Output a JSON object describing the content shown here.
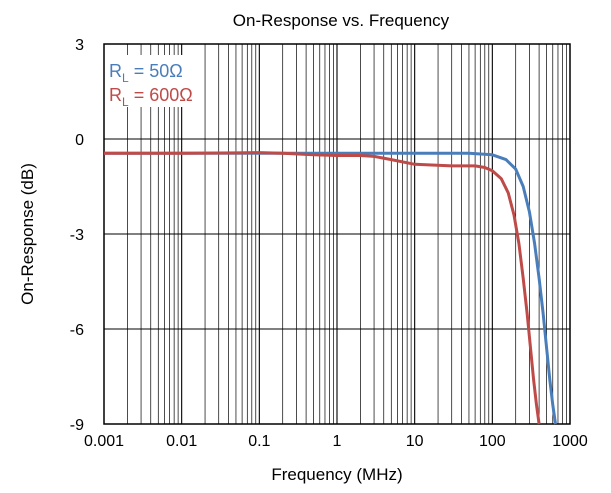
{
  "chart_data": {
    "type": "line",
    "title": "On-Response vs. Frequency",
    "xlabel": "Frequency (MHz)",
    "ylabel": "On-Response (dB)",
    "x_scale": "log",
    "xlim": [
      0.001,
      1000
    ],
    "ylim": [
      -9,
      3
    ],
    "x_ticks": [
      0.001,
      0.01,
      0.1,
      1,
      10,
      100,
      1000
    ],
    "x_tick_labels": [
      "0.001",
      "0.01",
      "0.1",
      "1",
      "10",
      "100",
      "1000"
    ],
    "y_ticks": [
      3,
      0,
      -3,
      -6,
      -9
    ],
    "y_tick_labels": [
      "3",
      "0",
      "-3",
      "-6",
      "-9"
    ],
    "grid": true,
    "legend": "top-left",
    "series": [
      {
        "name": "R_L = 50Ω",
        "legend_main": "R",
        "legend_sub": "L",
        "legend_rest": " = 50Ω",
        "color": "#4a7ebb",
        "x": [
          0.001,
          0.01,
          0.1,
          1,
          10,
          50,
          100,
          150,
          200,
          250,
          300,
          350,
          400,
          450,
          500,
          550,
          600,
          650
        ],
        "y": [
          -0.45,
          -0.45,
          -0.45,
          -0.45,
          -0.45,
          -0.45,
          -0.5,
          -0.65,
          -0.95,
          -1.5,
          -2.3,
          -3.3,
          -4.4,
          -5.5,
          -6.6,
          -7.6,
          -8.4,
          -9.0
        ]
      },
      {
        "name": "R_L = 600Ω",
        "legend_main": "R",
        "legend_sub": "L",
        "legend_rest": " = 600Ω",
        "color": "#be4b48",
        "x": [
          0.001,
          0.01,
          0.05,
          0.1,
          0.2,
          0.5,
          1,
          2,
          3,
          5,
          10,
          30,
          60,
          80,
          100,
          130,
          160,
          190,
          220,
          250,
          280,
          310,
          340,
          370,
          400
        ],
        "y": [
          -0.45,
          -0.45,
          -0.44,
          -0.43,
          -0.45,
          -0.5,
          -0.52,
          -0.52,
          -0.55,
          -0.65,
          -0.8,
          -0.85,
          -0.85,
          -0.9,
          -1.0,
          -1.25,
          -1.7,
          -2.4,
          -3.3,
          -4.4,
          -5.5,
          -6.6,
          -7.6,
          -8.4,
          -9.0
        ]
      }
    ]
  }
}
